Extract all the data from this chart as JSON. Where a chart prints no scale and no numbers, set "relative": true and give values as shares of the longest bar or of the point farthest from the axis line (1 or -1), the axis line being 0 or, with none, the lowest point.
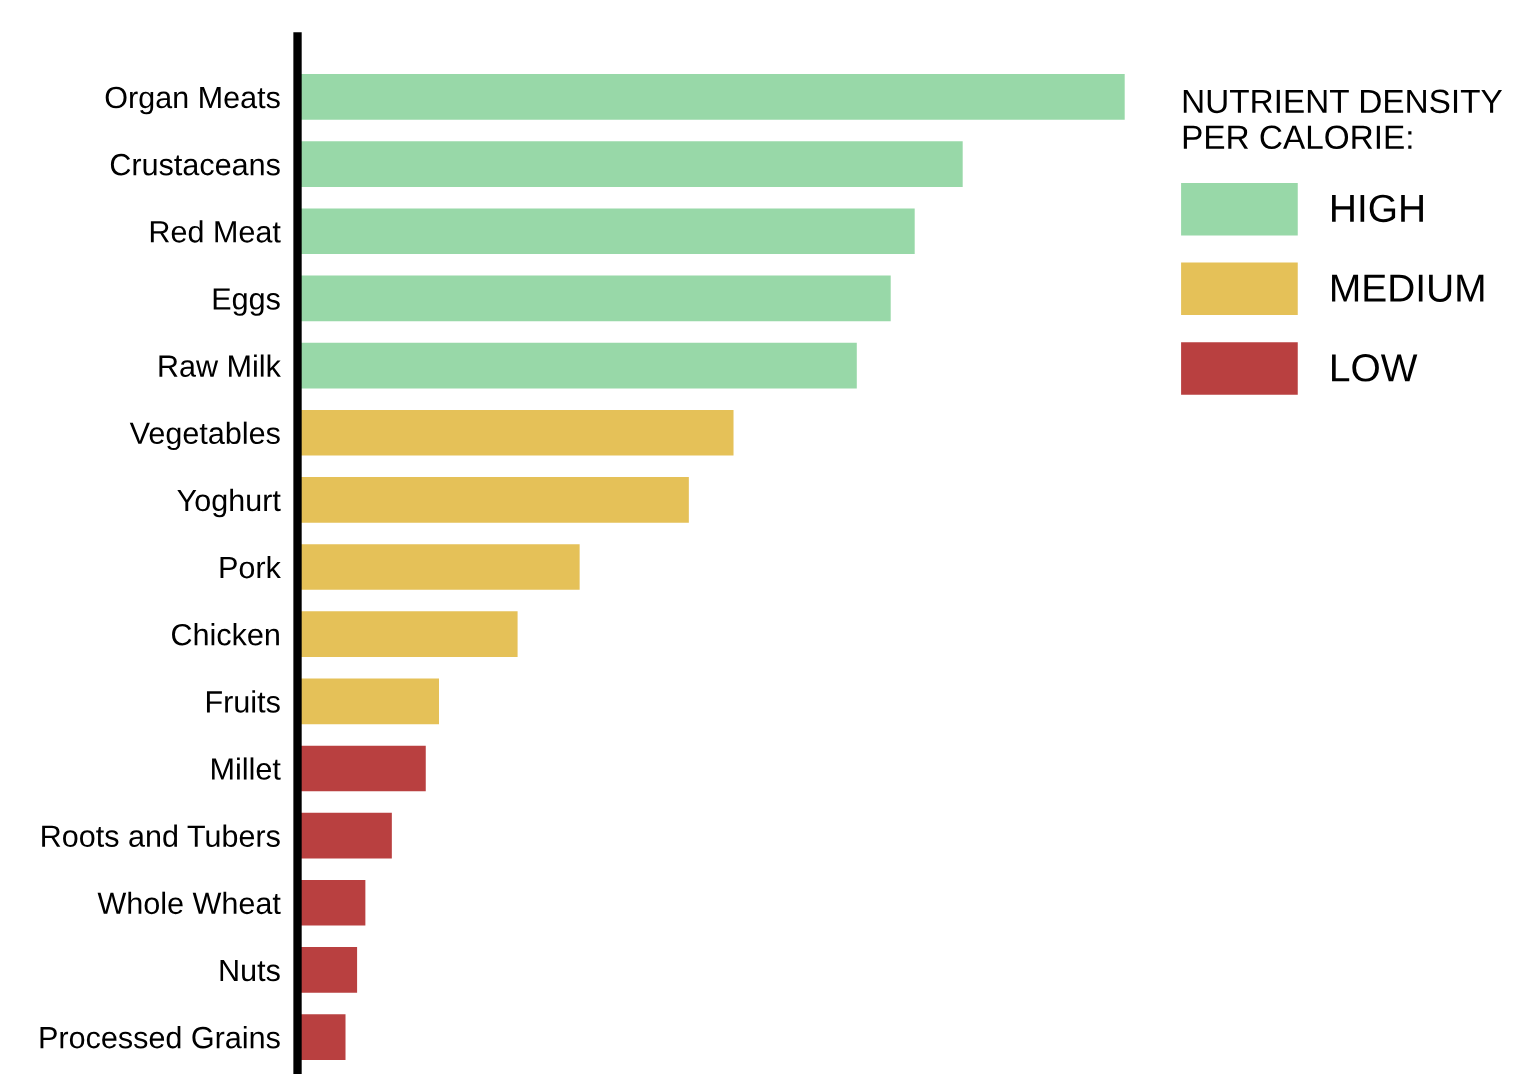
{
  "chart_data": {
    "type": "bar",
    "orientation": "horizontal",
    "relative": true,
    "legend": "top right",
    "legend_title": "NUTRIENT DENSITY\nPER CALORIE:",
    "grid": false,
    "categories": [
      "Organ Meats",
      "Crustaceans",
      "Red Meat",
      "Eggs",
      "Raw Milk",
      "Vegetables",
      "Yoghurt",
      "Pork",
      "Chicken",
      "Fruits",
      "Millet",
      "Roots and Tubers",
      "Whole Wheat",
      "Nuts",
      "Processed Grains"
    ],
    "series": [
      {
        "name": "HIGH",
        "color": "#98d8a8",
        "values": [
          1,
          0.804,
          0.746,
          0.717,
          0.676,
          null,
          null,
          null,
          null,
          null,
          null,
          null,
          null,
          null,
          null
        ]
      },
      {
        "name": "MEDIUM",
        "color": "#e5c158",
        "values": [
          null,
          null,
          null,
          null,
          null,
          0.527,
          0.473,
          0.341,
          0.266,
          0.171,
          null,
          null,
          null,
          null,
          null
        ]
      },
      {
        "name": "LOW",
        "color": "#b94040",
        "values": [
          null,
          null,
          null,
          null,
          null,
          null,
          null,
          null,
          null,
          null,
          0.155,
          0.114,
          0.082,
          0.072,
          0.058
        ]
      }
    ]
  }
}
